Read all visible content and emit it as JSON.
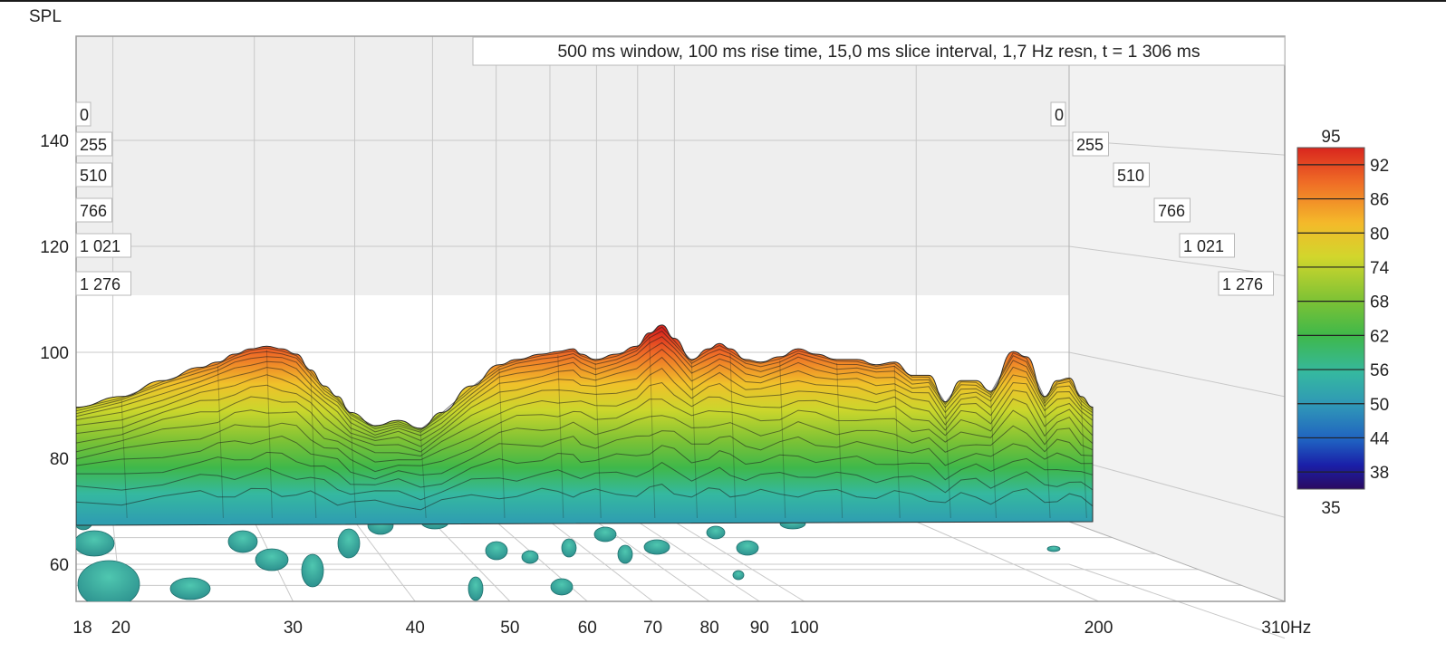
{
  "chart_data": {
    "type": "waterfall-3d",
    "title": "500 ms window, 100 ms rise time, 15,0 ms slice interval, 1,7 Hz resn, t = 1 306 ms",
    "ylabel": "SPL",
    "xunit": "Hz",
    "xscale": "log",
    "xlim": [
      18,
      310
    ],
    "x_ticks": [
      {
        "v": 18,
        "label": "18"
      },
      {
        "v": 20,
        "label": "20"
      },
      {
        "v": 30,
        "label": "30"
      },
      {
        "v": 40,
        "label": "40"
      },
      {
        "v": 50,
        "label": "50"
      },
      {
        "v": 60,
        "label": "60"
      },
      {
        "v": 70,
        "label": "70"
      },
      {
        "v": 80,
        "label": "80"
      },
      {
        "v": 90,
        "label": "90"
      },
      {
        "v": 100,
        "label": "100"
      },
      {
        "v": 200,
        "label": "200"
      },
      {
        "v": 310,
        "label": "310"
      }
    ],
    "ylim": [
      53,
      162
    ],
    "y_ticks": [
      {
        "v": 60,
        "label": "60"
      },
      {
        "v": 80,
        "label": "80"
      },
      {
        "v": 100,
        "label": "100"
      },
      {
        "v": 120,
        "label": "120"
      },
      {
        "v": 140,
        "label": "140"
      }
    ],
    "time_unit": "ms",
    "time_ticks": [
      "0",
      "255",
      "510",
      "766",
      "1 021",
      "1 276"
    ],
    "colorbar": {
      "min": 35,
      "max": 95,
      "min_label": "35",
      "max_label": "95",
      "ticks": [
        "92",
        "86",
        "80",
        "74",
        "68",
        "62",
        "56",
        "50",
        "44",
        "38"
      ],
      "tick_values": [
        92,
        86,
        80,
        74,
        68,
        62,
        56,
        50,
        44,
        38
      ],
      "colors": [
        "#2a0a60",
        "#1a1fa8",
        "#1f5fc0",
        "#2f95b8",
        "#35b8a0",
        "#3fb84a",
        "#7cc235",
        "#d2d62c",
        "#f4b92a",
        "#ef6b26",
        "#d9261e"
      ]
    },
    "series": [
      {
        "slice": "0 ms",
        "points": [
          [
            18,
            90
          ],
          [
            20,
            92
          ],
          [
            22,
            95
          ],
          [
            24,
            97.5
          ],
          [
            25,
            98.5
          ],
          [
            26,
            100
          ],
          [
            27,
            101
          ],
          [
            28,
            101.5
          ],
          [
            29,
            101
          ],
          [
            30,
            100
          ],
          [
            31,
            97
          ],
          [
            32,
            94
          ],
          [
            33,
            92
          ],
          [
            34,
            89
          ],
          [
            36,
            86.5
          ],
          [
            38,
            87.5
          ],
          [
            40,
            86
          ],
          [
            42,
            89
          ],
          [
            45,
            94
          ],
          [
            48,
            98
          ],
          [
            50,
            99
          ],
          [
            53,
            100
          ],
          [
            55,
            100.5
          ],
          [
            57,
            101
          ],
          [
            58,
            100
          ],
          [
            60,
            99
          ],
          [
            63,
            100
          ],
          [
            66,
            101.5
          ],
          [
            68,
            104
          ],
          [
            70,
            105.5
          ],
          [
            72,
            103
          ],
          [
            75,
            99
          ],
          [
            78,
            101
          ],
          [
            80,
            102
          ],
          [
            82,
            101
          ],
          [
            85,
            99
          ],
          [
            88,
            98.5
          ],
          [
            92,
            99.5
          ],
          [
            96,
            101
          ],
          [
            100,
            100
          ],
          [
            105,
            99
          ],
          [
            110,
            99
          ],
          [
            115,
            98
          ],
          [
            120,
            98.5
          ],
          [
            125,
            96
          ],
          [
            130,
            96
          ],
          [
            135,
            91
          ],
          [
            140,
            95
          ],
          [
            145,
            95
          ],
          [
            150,
            93
          ],
          [
            158,
            100.5
          ],
          [
            163,
            99.5
          ],
          [
            170,
            92
          ],
          [
            175,
            95
          ],
          [
            180,
            95.5
          ],
          [
            185,
            92
          ],
          [
            190,
            90
          ]
        ]
      }
    ]
  }
}
